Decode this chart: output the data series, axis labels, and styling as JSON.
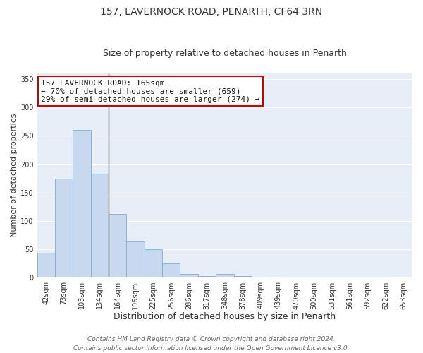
{
  "title": "157, LAVERNOCK ROAD, PENARTH, CF64 3RN",
  "subtitle": "Size of property relative to detached houses in Penarth",
  "xlabel": "Distribution of detached houses by size in Penarth",
  "ylabel": "Number of detached properties",
  "bar_color": "#c8d8ee",
  "bar_edge_color": "#7bafd4",
  "categories": [
    "42sqm",
    "73sqm",
    "103sqm",
    "134sqm",
    "164sqm",
    "195sqm",
    "225sqm",
    "256sqm",
    "286sqm",
    "317sqm",
    "348sqm",
    "378sqm",
    "409sqm",
    "439sqm",
    "470sqm",
    "500sqm",
    "531sqm",
    "561sqm",
    "592sqm",
    "622sqm",
    "653sqm"
  ],
  "values": [
    44,
    175,
    261,
    184,
    113,
    64,
    50,
    25,
    7,
    3,
    7,
    3,
    1,
    2,
    0,
    0,
    1,
    0,
    0,
    0,
    2
  ],
  "ylim": [
    0,
    360
  ],
  "yticks": [
    0,
    50,
    100,
    150,
    200,
    250,
    300,
    350
  ],
  "annotation_line1": "157 LAVERNOCK ROAD: 165sqm",
  "annotation_line2": "← 70% of detached houses are smaller (659)",
  "annotation_line3": "29% of semi-detached houses are larger (274) →",
  "annotation_box_color": "#ffffff",
  "annotation_border_color": "#cc0000",
  "footer_line1": "Contains HM Land Registry data © Crown copyright and database right 2024.",
  "footer_line2": "Contains public sector information licensed under the Open Government Licence v3.0.",
  "fig_background_color": "#ffffff",
  "plot_background_color": "#e8eef8",
  "grid_color": "#ffffff",
  "title_fontsize": 10,
  "subtitle_fontsize": 9,
  "xlabel_fontsize": 9,
  "ylabel_fontsize": 8,
  "tick_fontsize": 7,
  "footer_fontsize": 6.5,
  "annotation_fontsize": 8
}
